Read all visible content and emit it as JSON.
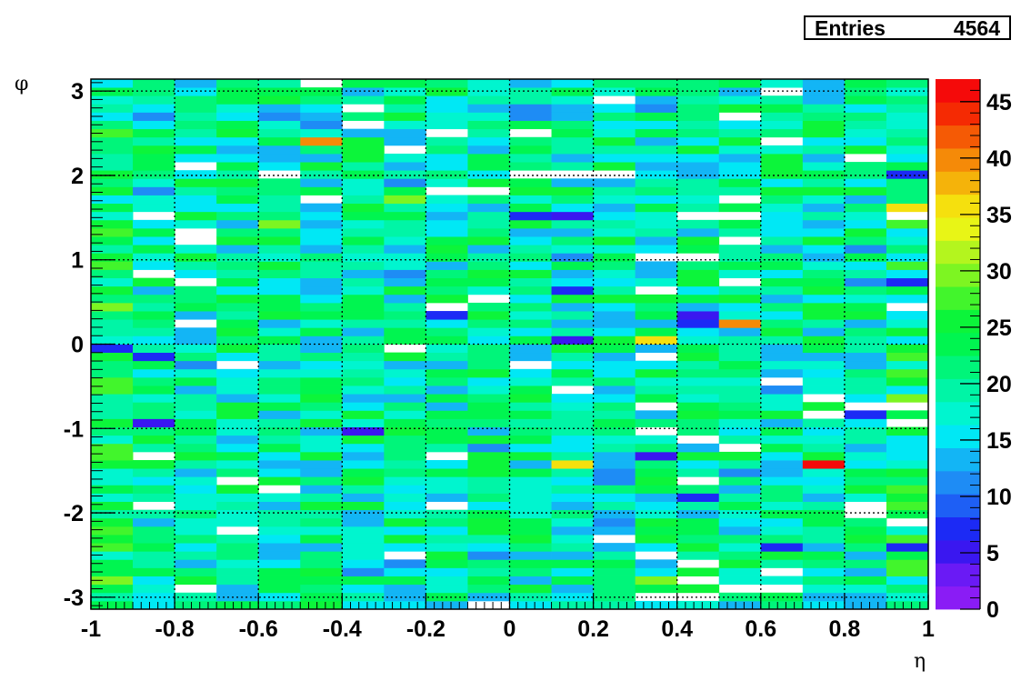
{
  "stats": {
    "label": "Entries",
    "value": "4564"
  },
  "chart_data": {
    "type": "heatmap",
    "title": "",
    "xlabel": "η",
    "ylabel": "φ",
    "xlim": [
      -1,
      1
    ],
    "ylim": [
      -3.1416,
      3.1416
    ],
    "x_bins": 20,
    "y_bins": 64,
    "zlim": [
      0,
      47
    ],
    "entries": 4564,
    "x_ticks": [
      "-1",
      "-0.8",
      "-0.6",
      "-0.4",
      "-0.2",
      "0",
      "0.2",
      "0.4",
      "0.6",
      "0.8",
      "1"
    ],
    "y_ticks": [
      "-3",
      "-2",
      "-1",
      "0",
      "1",
      "2",
      "3"
    ],
    "z_ticks": [
      "0",
      "5",
      "10",
      "15",
      "20",
      "25",
      "30",
      "35",
      "40",
      "45"
    ],
    "grid": true,
    "colorbar": true,
    "palette": [
      "#8a1cf5",
      "#6a1af5",
      "#3a17f0",
      "#1c2af5",
      "#1e5ff5",
      "#1e8cf5",
      "#13b5f5",
      "#00e8f5",
      "#00f5cf",
      "#00f5a6",
      "#00f57a",
      "#00f550",
      "#0cf53a",
      "#42f52c",
      "#7df522",
      "#b4f51e",
      "#e8f516",
      "#f5e00e",
      "#f5b30a",
      "#f58a08",
      "#f55a05",
      "#f52a03",
      "#f50a0a"
    ],
    "cell_value_range": [
      12,
      26
    ],
    "notable_cells": [
      {
        "eta": -0.49,
        "phi": 2.45,
        "value": 40
      },
      {
        "eta": -0.27,
        "phi": 1.7,
        "value": 30
      },
      {
        "eta": 0.09,
        "phi": 1.55,
        "value": 8
      },
      {
        "eta": 0.19,
        "phi": 1.55,
        "value": 5
      },
      {
        "eta": -0.89,
        "phi": -0.95,
        "value": 5
      },
      {
        "eta": -0.59,
        "phi": 1.4,
        "value": 30
      },
      {
        "eta": 0.57,
        "phi": 0.28,
        "value": 40
      },
      {
        "eta": 0.71,
        "phi": -1.45,
        "value": 45
      },
      {
        "eta": -0.39,
        "phi": -1.0,
        "value": 5
      },
      {
        "eta": 0.37,
        "phi": -1.35,
        "value": 5
      },
      {
        "eta": 0.17,
        "phi": 0.65,
        "value": 8
      },
      {
        "eta": -0.13,
        "phi": 0.35,
        "value": 8
      },
      {
        "eta": 0.41,
        "phi": 0.3,
        "value": 5
      },
      {
        "eta": 0.47,
        "phi": 0.28,
        "value": 8
      },
      {
        "eta": 0.17,
        "phi": 0.05,
        "value": 5
      },
      {
        "eta": 0.59,
        "phi": -2.85,
        "value": 8
      },
      {
        "eta": 0.61,
        "phi": -2.4,
        "value": 8
      },
      {
        "eta": 0.83,
        "phi": -0.85,
        "value": 8
      },
      {
        "eta": 0.99,
        "phi": 2.0,
        "value": 8
      },
      {
        "eta": 0.99,
        "phi": 0.75,
        "value": 8
      },
      {
        "eta": -0.95,
        "phi": -0.05,
        "value": 8
      },
      {
        "eta": -0.85,
        "phi": -0.1,
        "value": 8
      },
      {
        "eta": 0.97,
        "phi": -2.45,
        "value": 8
      },
      {
        "eta": 0.43,
        "phi": -1.85,
        "value": 8
      },
      {
        "eta": 0.21,
        "phi": -2.35,
        "value": 8
      },
      {
        "eta": 0.35,
        "phi": -2.75,
        "value": 30
      },
      {
        "eta": 0.91,
        "phi": -0.6,
        "value": 30
      },
      {
        "eta": 0.99,
        "phi": 1.6,
        "value": 35
      },
      {
        "eta": 0.35,
        "phi": -0.0,
        "value": 35
      },
      {
        "eta": 0.17,
        "phi": -1.45,
        "value": 35
      }
    ],
    "empty_cells": [
      {
        "eta": -0.75,
        "phi": 1.3
      },
      {
        "eta": -0.89,
        "phi": 1.5
      },
      {
        "eta": -0.07,
        "phi": 1.85
      },
      {
        "eta": -0.13,
        "phi": 1.85
      },
      {
        "eta": 0.31,
        "phi": 0.6
      },
      {
        "eta": -0.67,
        "phi": -1.6
      },
      {
        "eta": 0.87,
        "phi": -0.75
      },
      {
        "eta": -0.47,
        "phi": 3.05
      },
      {
        "eta": 0.15,
        "phi": 2.0
      },
      {
        "eta": 0.05,
        "phi": 2.0
      }
    ]
  }
}
